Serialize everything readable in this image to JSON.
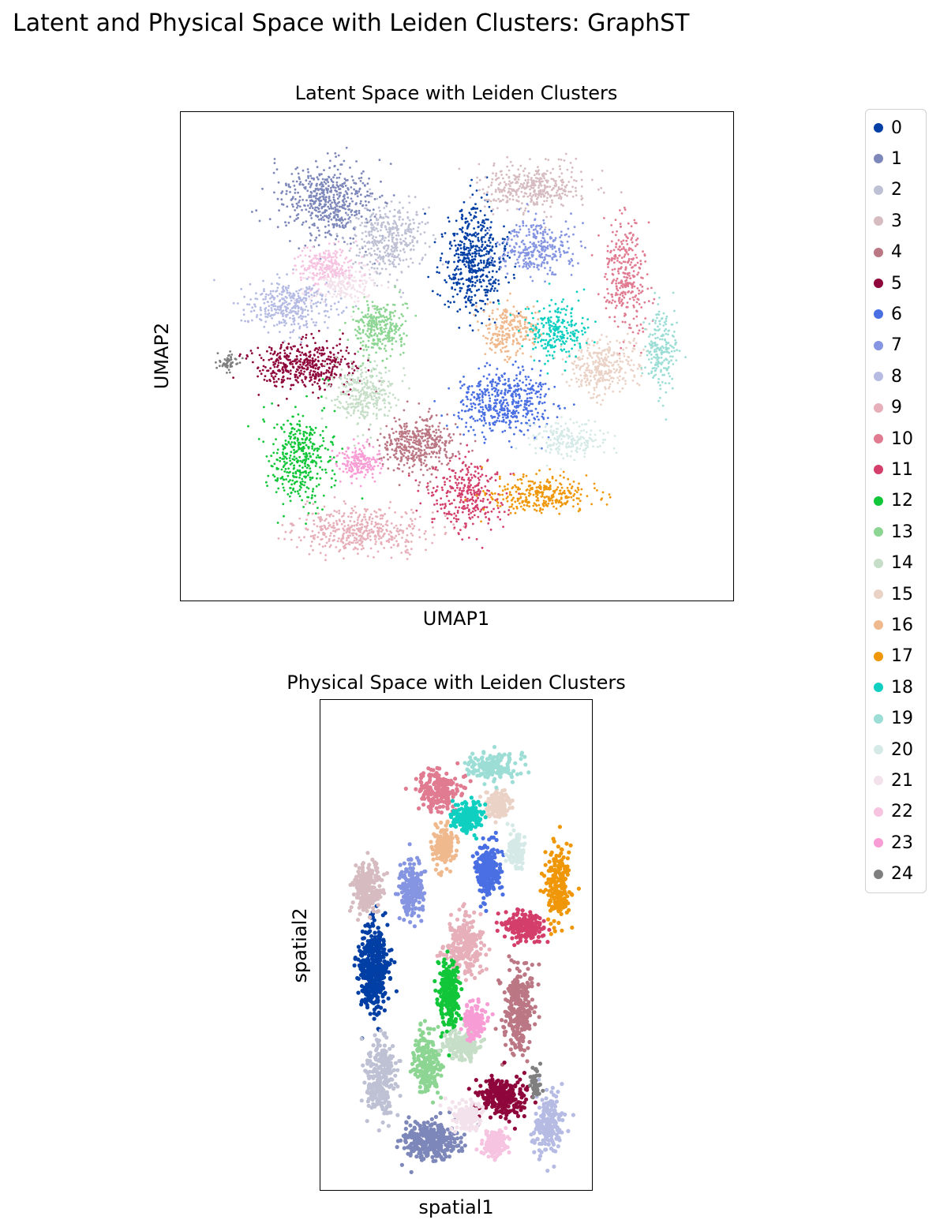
{
  "figure": {
    "suptitle": "Latent and Physical Space with Leiden Clusters: GraphST"
  },
  "clusters": [
    {
      "id": "0",
      "color": "#023fa5"
    },
    {
      "id": "1",
      "color": "#7d87b9"
    },
    {
      "id": "2",
      "color": "#bec1d4"
    },
    {
      "id": "3",
      "color": "#d6bcc0"
    },
    {
      "id": "4",
      "color": "#bb7784"
    },
    {
      "id": "5",
      "color": "#8e063b"
    },
    {
      "id": "6",
      "color": "#4a6fe3"
    },
    {
      "id": "7",
      "color": "#8595e1"
    },
    {
      "id": "8",
      "color": "#b5bbe3"
    },
    {
      "id": "9",
      "color": "#e6afb9"
    },
    {
      "id": "10",
      "color": "#e07b91"
    },
    {
      "id": "11",
      "color": "#d33f6a"
    },
    {
      "id": "12",
      "color": "#11c638"
    },
    {
      "id": "13",
      "color": "#8dd593"
    },
    {
      "id": "14",
      "color": "#c6dec7"
    },
    {
      "id": "15",
      "color": "#ead3c6"
    },
    {
      "id": "16",
      "color": "#f0b98d"
    },
    {
      "id": "17",
      "color": "#ef9708"
    },
    {
      "id": "18",
      "color": "#0fcfc0"
    },
    {
      "id": "19",
      "color": "#9cded6"
    },
    {
      "id": "20",
      "color": "#d5eae7"
    },
    {
      "id": "21",
      "color": "#f3e1eb"
    },
    {
      "id": "22",
      "color": "#f6c4e1"
    },
    {
      "id": "23",
      "color": "#f79cd4"
    },
    {
      "id": "24",
      "color": "#7f7f7f"
    }
  ],
  "chart_data": [
    {
      "type": "scatter",
      "title": "Latent Space with Leiden Clusters",
      "xlabel": "UMAP1",
      "ylabel": "UMAP2",
      "xticks": [],
      "yticks": [],
      "legend_placement": "right",
      "xlim": [
        0,
        100
      ],
      "ylim": [
        0,
        100
      ],
      "series": [
        {
          "name": "0",
          "centroid": [
            53,
            71
          ],
          "spread": [
            6,
            12
          ],
          "count": 520
        },
        {
          "name": "1",
          "centroid": [
            25,
            84
          ],
          "spread": [
            9,
            9
          ],
          "count": 520
        },
        {
          "name": "2",
          "centroid": [
            37,
            76
          ],
          "spread": [
            7,
            8
          ],
          "count": 380
        },
        {
          "name": "3",
          "centroid": [
            64,
            87
          ],
          "spread": [
            10,
            5
          ],
          "count": 380
        },
        {
          "name": "4",
          "centroid": [
            42,
            31
          ],
          "spread": [
            7,
            6
          ],
          "count": 420
        },
        {
          "name": "5",
          "centroid": [
            21,
            48
          ],
          "spread": [
            10,
            5
          ],
          "count": 440
        },
        {
          "name": "6",
          "centroid": [
            59,
            40
          ],
          "spread": [
            9,
            7
          ],
          "count": 480
        },
        {
          "name": "7",
          "centroid": [
            65,
            74
          ],
          "spread": [
            7,
            6
          ],
          "count": 300
        },
        {
          "name": "8",
          "centroid": [
            18,
            61
          ],
          "spread": [
            9,
            5
          ],
          "count": 340
        },
        {
          "name": "9",
          "centroid": [
            31,
            12
          ],
          "spread": [
            13,
            5
          ],
          "count": 440
        },
        {
          "name": "10",
          "centroid": [
            82,
            68
          ],
          "spread": [
            4,
            12
          ],
          "count": 300
        },
        {
          "name": "11",
          "centroid": [
            52,
            20
          ],
          "spread": [
            7,
            8
          ],
          "count": 300
        },
        {
          "name": "12",
          "centroid": [
            20,
            28
          ],
          "spread": [
            6,
            10
          ],
          "count": 380
        },
        {
          "name": "13",
          "centroid": [
            35,
            56
          ],
          "spread": [
            5,
            7
          ],
          "count": 300
        },
        {
          "name": "14",
          "centroid": [
            32,
            42
          ],
          "spread": [
            6,
            6
          ],
          "count": 300
        },
        {
          "name": "15",
          "centroid": [
            78,
            48
          ],
          "spread": [
            7,
            6
          ],
          "count": 320
        },
        {
          "name": "16",
          "centroid": [
            60,
            56
          ],
          "spread": [
            5,
            6
          ],
          "count": 240
        },
        {
          "name": "17",
          "centroid": [
            66,
            20
          ],
          "spread": [
            10,
            4
          ],
          "count": 300
        },
        {
          "name": "18",
          "centroid": [
            69,
            56
          ],
          "spread": [
            6,
            6
          ],
          "count": 240
        },
        {
          "name": "19",
          "centroid": [
            89,
            52
          ],
          "spread": [
            3,
            9
          ],
          "count": 200
        },
        {
          "name": "20",
          "centroid": [
            71,
            32
          ],
          "spread": [
            7,
            4
          ],
          "count": 200
        },
        {
          "name": "21",
          "centroid": [
            28,
            66
          ],
          "spread": [
            6,
            4
          ],
          "count": 200
        },
        {
          "name": "22",
          "centroid": [
            25,
            70
          ],
          "spread": [
            6,
            4
          ],
          "count": 220
        },
        {
          "name": "23",
          "centroid": [
            31,
            27
          ],
          "spread": [
            4,
            4
          ],
          "count": 180
        },
        {
          "name": "24",
          "centroid": [
            6,
            49
          ],
          "spread": [
            2,
            2
          ],
          "count": 50
        }
      ]
    },
    {
      "type": "scatter",
      "title": "Physical Space with Leiden Clusters",
      "xlabel": "spatial1",
      "ylabel": "spatial2",
      "xticks": [],
      "yticks": [],
      "xlim": [
        0,
        100
      ],
      "ylim": [
        0,
        100
      ],
      "series": [
        {
          "name": "0",
          "centroid": [
            17,
            45
          ],
          "spread": [
            6,
            9
          ],
          "count": 420
        },
        {
          "name": "1",
          "centroid": [
            40,
            9
          ],
          "spread": [
            11,
            4
          ],
          "count": 320
        },
        {
          "name": "2",
          "centroid": [
            20,
            22
          ],
          "spread": [
            6,
            8
          ],
          "count": 260
        },
        {
          "name": "3",
          "centroid": [
            15,
            62
          ],
          "spread": [
            5,
            6
          ],
          "count": 240
        },
        {
          "name": "4",
          "centroid": [
            74,
            37
          ],
          "spread": [
            6,
            10
          ],
          "count": 280
        },
        {
          "name": "5",
          "centroid": [
            68,
            18
          ],
          "spread": [
            9,
            4
          ],
          "count": 260
        },
        {
          "name": "6",
          "centroid": [
            62,
            66
          ],
          "spread": [
            5,
            6
          ],
          "count": 240
        },
        {
          "name": "7",
          "centroid": [
            32,
            62
          ],
          "spread": [
            5,
            6
          ],
          "count": 200
        },
        {
          "name": "8",
          "centroid": [
            86,
            12
          ],
          "spread": [
            6,
            6
          ],
          "count": 200
        },
        {
          "name": "9",
          "centroid": [
            53,
            50
          ],
          "spread": [
            8,
            6
          ],
          "count": 220
        },
        {
          "name": "10",
          "centroid": [
            43,
            83
          ],
          "spread": [
            8,
            4
          ],
          "count": 200
        },
        {
          "name": "11",
          "centroid": [
            77,
            54
          ],
          "spread": [
            8,
            3
          ],
          "count": 200
        },
        {
          "name": "12",
          "centroid": [
            47,
            40
          ],
          "spread": [
            4,
            7
          ],
          "count": 240
        },
        {
          "name": "13",
          "centroid": [
            38,
            25
          ],
          "spread": [
            5,
            7
          ],
          "count": 200
        },
        {
          "name": "14",
          "centroid": [
            52,
            29
          ],
          "spread": [
            7,
            3
          ],
          "count": 200
        },
        {
          "name": "15",
          "centroid": [
            66,
            80
          ],
          "spread": [
            5,
            3
          ],
          "count": 160
        },
        {
          "name": "16",
          "centroid": [
            45,
            71
          ],
          "spread": [
            4,
            4
          ],
          "count": 160
        },
        {
          "name": "17",
          "centroid": [
            90,
            63
          ],
          "spread": [
            5,
            8
          ],
          "count": 200
        },
        {
          "name": "18",
          "centroid": [
            54,
            77
          ],
          "spread": [
            6,
            3
          ],
          "count": 180
        },
        {
          "name": "19",
          "centroid": [
            64,
            88
          ],
          "spread": [
            10,
            3
          ],
          "count": 160
        },
        {
          "name": "20",
          "centroid": [
            73,
            70
          ],
          "spread": [
            3,
            4
          ],
          "count": 120
        },
        {
          "name": "21",
          "centroid": [
            54,
            14
          ],
          "spread": [
            7,
            3
          ],
          "count": 140
        },
        {
          "name": "22",
          "centroid": [
            65,
            8
          ],
          "spread": [
            5,
            3
          ],
          "count": 140
        },
        {
          "name": "23",
          "centroid": [
            57,
            34
          ],
          "spread": [
            4,
            4
          ],
          "count": 140
        },
        {
          "name": "24",
          "centroid": [
            81,
            21
          ],
          "spread": [
            2,
            3
          ],
          "count": 50
        }
      ]
    }
  ]
}
